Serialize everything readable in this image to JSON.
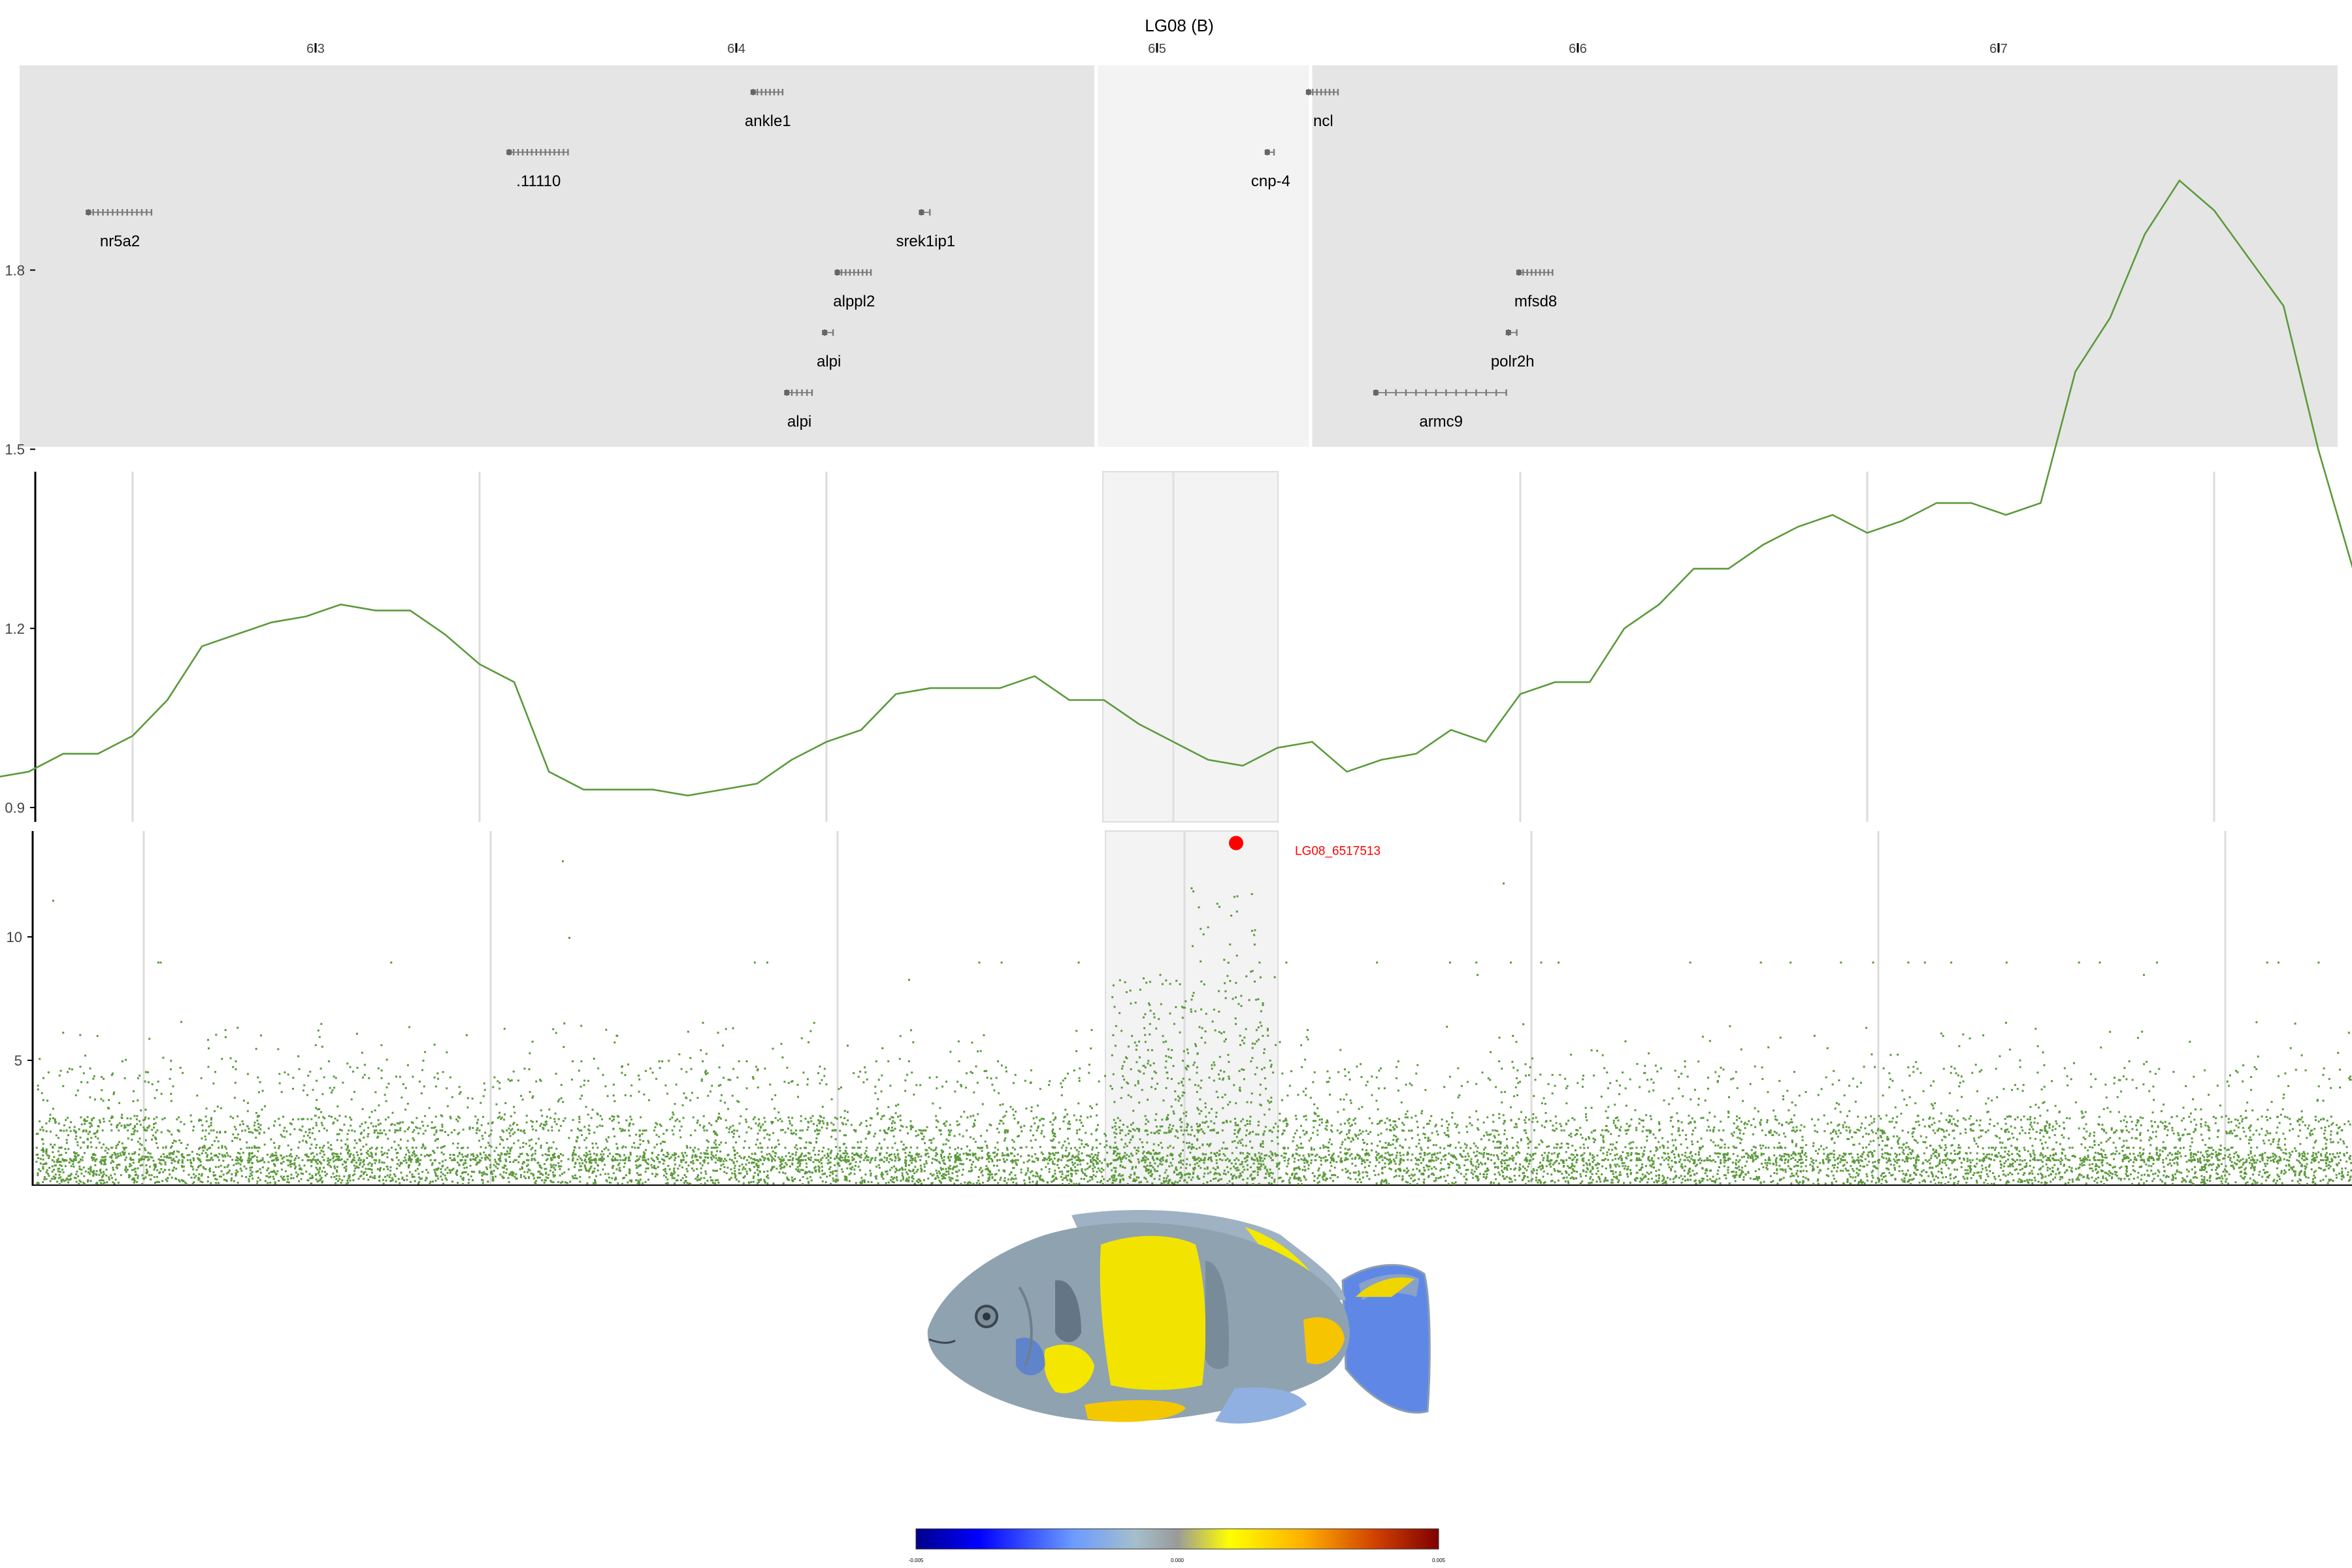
{
  "chart_data": [
    {
      "type": "gene-track",
      "title": "LG08 (B)",
      "xlim": [
        6.23,
        6.78
      ],
      "x_ticks": [
        {
          "value": 6.3,
          "label": "6.3"
        },
        {
          "value": 6.4,
          "label": "6.4"
        },
        {
          "value": 6.5,
          "label": "6.5"
        },
        {
          "value": 6.6,
          "label": "6.6"
        },
        {
          "value": 6.7,
          "label": "6.7"
        }
      ],
      "highlight_region": [
        6.4855,
        6.5365
      ],
      "genes": [
        {
          "name": "ankle1",
          "start": 6.404,
          "end": 6.411,
          "row": 0
        },
        {
          "name": ".11110",
          "start": 6.346,
          "end": 6.36,
          "row": 1
        },
        {
          "name": "nr5a2",
          "start": 6.246,
          "end": 6.261,
          "row": 2
        },
        {
          "name": "srek1ip1",
          "start": 6.444,
          "end": 6.446,
          "row": 2
        },
        {
          "name": "alppl2",
          "start": 6.424,
          "end": 6.432,
          "row": 3
        },
        {
          "name": "alpi",
          "start": 6.421,
          "end": 6.423,
          "row": 4
        },
        {
          "name": "alpi",
          "start": 6.412,
          "end": 6.418,
          "row": 5
        },
        {
          "name": "ncl",
          "start": 6.536,
          "end": 6.543,
          "row": 0
        },
        {
          "name": "cnp-4",
          "start": 6.5262,
          "end": 6.5278,
          "row": 1
        },
        {
          "name": "mfsd8",
          "start": 6.586,
          "end": 6.594,
          "row": 3
        },
        {
          "name": "polr2h",
          "start": 6.5835,
          "end": 6.5855,
          "row": 4
        },
        {
          "name": "armc9",
          "start": 6.552,
          "end": 6.583,
          "row": 5
        }
      ]
    },
    {
      "type": "line",
      "y_ticks": [
        0.9,
        1.2,
        1.5,
        1.8
      ],
      "ylim": [
        0.87,
        1.95
      ],
      "x": [
        6.23,
        6.235,
        6.24,
        6.245,
        6.25,
        6.255,
        6.26,
        6.265,
        6.27,
        6.275,
        6.28,
        6.285,
        6.29,
        6.295,
        6.3,
        6.305,
        6.31,
        6.315,
        6.32,
        6.325,
        6.33,
        6.335,
        6.34,
        6.345,
        6.35,
        6.355,
        6.36,
        6.365,
        6.37,
        6.375,
        6.38,
        6.385,
        6.39,
        6.395,
        6.4,
        6.405,
        6.41,
        6.415,
        6.42,
        6.425,
        6.43,
        6.435,
        6.44,
        6.445,
        6.45,
        6.455,
        6.46,
        6.465,
        6.47,
        6.475,
        6.48,
        6.485,
        6.49,
        6.495,
        6.5,
        6.505,
        6.51,
        6.515,
        6.52,
        6.525,
        6.53,
        6.535,
        6.54,
        6.545,
        6.55,
        6.555,
        6.56,
        6.565,
        6.57,
        6.575,
        6.58,
        6.585,
        6.59,
        6.595,
        6.6,
        6.605,
        6.61,
        6.615,
        6.62,
        6.625,
        6.63,
        6.635,
        6.64,
        6.645,
        6.65,
        6.655,
        6.66,
        6.665,
        6.67,
        6.675,
        6.68,
        6.685,
        6.69,
        6.695,
        6.7,
        6.705,
        6.71,
        6.715,
        6.72,
        6.725,
        6.73,
        6.735,
        6.74,
        6.745,
        6.75,
        6.755,
        6.76,
        6.765,
        6.77,
        6.775,
        6.78
      ],
      "y": [
        0.95,
        0.96,
        0.99,
        0.99,
        1.02,
        1.08,
        1.17,
        1.19,
        1.21,
        1.22,
        1.24,
        1.23,
        1.23,
        1.19,
        1.14,
        1.11,
        0.96,
        0.93,
        0.93,
        0.93,
        0.92,
        0.93,
        0.94,
        0.98,
        1.01,
        1.03,
        1.09,
        1.1,
        1.1,
        1.1,
        1.12,
        1.08,
        1.08,
        1.04,
        1.01,
        0.98,
        0.97,
        1.0,
        1.01,
        0.96,
        0.98,
        0.99,
        1.03,
        1.01,
        1.09,
        1.11,
        1.11,
        1.2,
        1.24,
        1.3,
        1.3,
        1.34,
        1.37,
        1.39,
        1.36,
        1.38,
        1.41,
        1.41,
        1.39,
        1.41,
        1.63,
        1.72,
        1.86,
        1.95,
        1.9,
        1.82,
        1.74,
        1.5,
        1.3,
        1.12,
        1.05,
        1.04,
        1.06,
        1.07,
        1.03,
        1.06,
        1.03,
        1.0,
        1.0,
        0.99,
        0.98,
        1.0,
        1.02,
        1.0,
        1.05,
        1.09,
        1.08,
        1.06,
        1.05,
        1.01,
        0.99,
        0.98,
        0.99,
        0.98,
        1.0,
        0.99,
        1.04,
        1.07,
        1.11,
        1.11,
        1.08,
        1.06,
        1.05,
        1.07,
        1.07,
        1.06,
        1.04,
        1.0,
        1.0,
        0.96,
        0.93
      ]
    },
    {
      "type": "scatter",
      "y_ticks": [
        5,
        10
      ],
      "ylim": [
        0,
        14.2
      ],
      "highlight_point": {
        "label": "LG08_6517513",
        "x": 6.5175,
        "y": 13.8
      }
    }
  ],
  "colorbar": {
    "min_label": "-0.005",
    "mid_label": "0.000",
    "max_label": "0.005",
    "colors": [
      "#00008b",
      "#0000ff",
      "#6b9bff",
      "#a4bfcc",
      "#9a9a9a",
      "#ffff00",
      "#ffb000",
      "#d04000",
      "#800000"
    ]
  },
  "colors": {
    "track_bg": "#e5e5e5",
    "highlight_bg": "#f3f3f3",
    "series": "#5b9a3c",
    "highlight_point": "#ff0000"
  }
}
